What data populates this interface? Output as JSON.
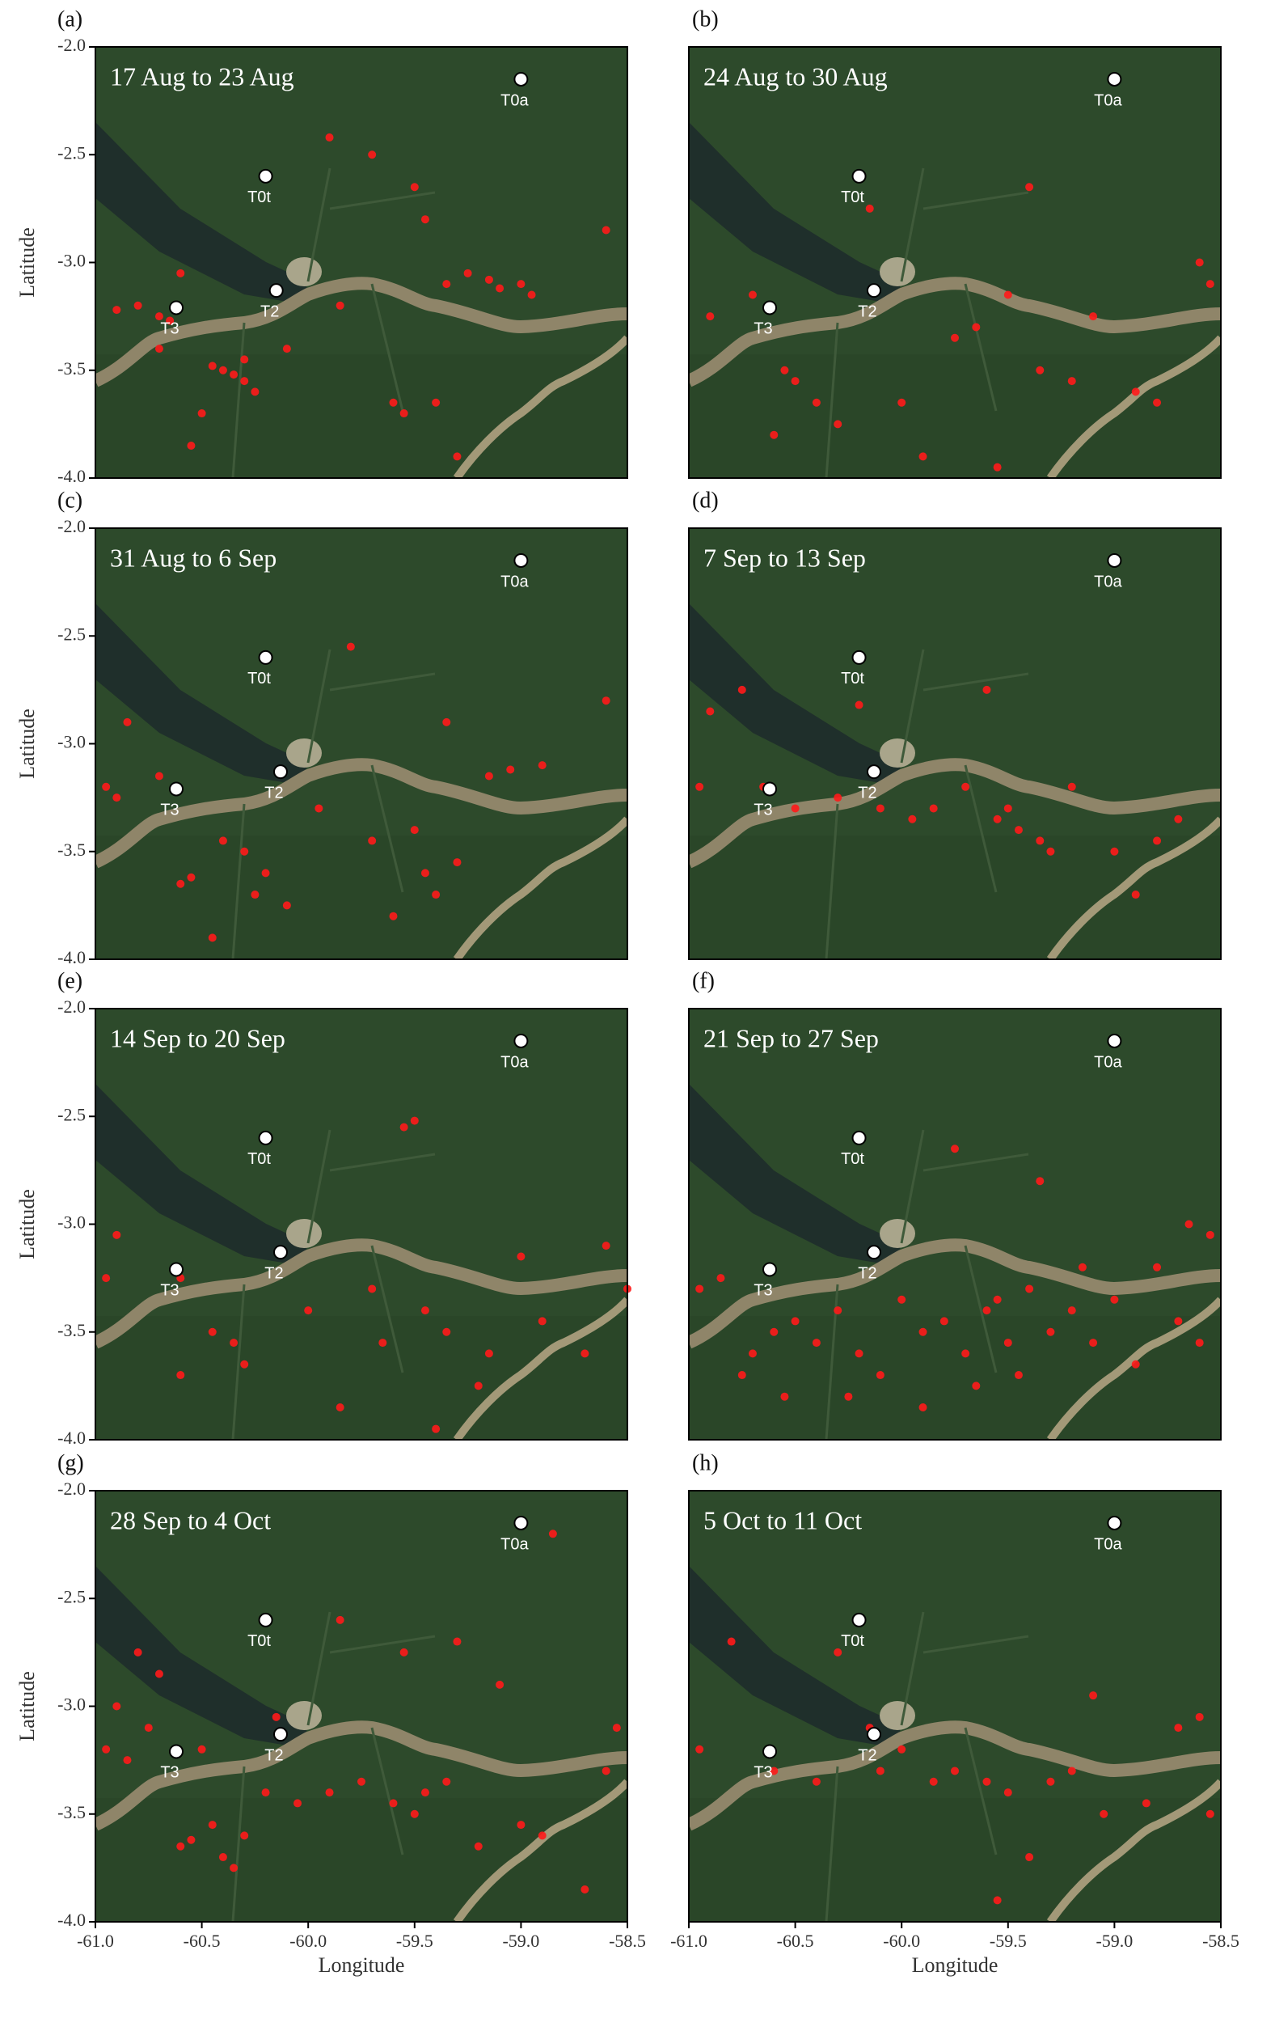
{
  "chart_data": [
    {
      "type": "scatter",
      "panel": "(a)",
      "title": "17 Aug to 23 Aug",
      "color": "#ff1a1a",
      "ylabel": "Latitude",
      "xlim": [
        -61,
        -58.5
      ],
      "ylim": [
        -4,
        -2
      ],
      "yticks": [
        {
          "value": -2,
          "label": "-2.0"
        },
        -2.5,
        {
          "value": -3,
          "label": "-3.0"
        },
        -3.5,
        {
          "value": -4,
          "label": "-4.0"
        }
      ],
      "sites": [
        {
          "name": "T0a",
          "lon": -59.0,
          "lat": -2.15
        },
        {
          "name": "T0t",
          "lon": -60.2,
          "lat": -2.6
        },
        {
          "name": "T2",
          "lon": -60.15,
          "lat": -3.13
        },
        {
          "name": "T3",
          "lon": -60.62,
          "lat": -3.21
        }
      ],
      "x": [
        -60.9,
        -60.8,
        -60.7,
        -60.65,
        -60.4,
        -60.35,
        -60.3,
        -60.45,
        -60.3,
        -60.25,
        -60.5,
        -60.55,
        -60.1,
        -59.85,
        -59.6,
        -59.55,
        -59.4,
        -59.35,
        -59.25,
        -59.15,
        -59.1,
        -59.0,
        -58.95,
        -59.5,
        -59.45,
        -59.7,
        -60.6,
        -60.7,
        -59.9,
        -59.3,
        -58.6
      ],
      "y": [
        -3.22,
        -3.2,
        -3.25,
        -3.27,
        -3.5,
        -3.52,
        -3.55,
        -3.48,
        -3.45,
        -3.6,
        -3.7,
        -3.85,
        -3.4,
        -3.2,
        -3.65,
        -3.7,
        -3.65,
        -3.1,
        -3.05,
        -3.08,
        -3.12,
        -3.1,
        -3.15,
        -2.65,
        -2.8,
        -2.5,
        -3.05,
        -3.4,
        -2.42,
        -3.9,
        -2.85
      ]
    },
    {
      "type": "scatter",
      "panel": "(b)",
      "title": "24 Aug to 30 Aug",
      "color": "#ff1a1a",
      "xlim": [
        -61,
        -58.5
      ],
      "ylim": [
        -4,
        -2
      ],
      "sites": [
        {
          "name": "T0a",
          "lon": -59.0,
          "lat": -2.15
        },
        {
          "name": "T0t",
          "lon": -60.2,
          "lat": -2.6
        },
        {
          "name": "T2",
          "lon": -60.13,
          "lat": -3.13
        },
        {
          "name": "T3",
          "lon": -60.62,
          "lat": -3.21
        }
      ],
      "x": [
        -60.9,
        -60.7,
        -60.55,
        -60.5,
        -60.4,
        -60.3,
        -60.0,
        -59.75,
        -59.65,
        -59.5,
        -59.35,
        -59.2,
        -59.1,
        -58.9,
        -58.8,
        -58.6,
        -58.55,
        -59.4,
        -60.15,
        -59.9,
        -60.6,
        -59.55
      ],
      "y": [
        -3.25,
        -3.15,
        -3.5,
        -3.55,
        -3.65,
        -3.75,
        -3.65,
        -3.35,
        -3.3,
        -3.15,
        -3.5,
        -3.55,
        -3.25,
        -3.6,
        -3.65,
        -3.0,
        -3.1,
        -2.65,
        -2.75,
        -3.9,
        -3.8,
        -3.95
      ]
    },
    {
      "type": "scatter",
      "panel": "(c)",
      "title": "31 Aug to 6 Sep",
      "color": "#ff1a1a",
      "ylabel": "Latitude",
      "xlim": [
        -61,
        -58.5
      ],
      "ylim": [
        -4,
        -2
      ],
      "yticks": [
        {
          "value": -2,
          "label": "-2.0"
        },
        -2.5,
        {
          "value": -3,
          "label": "-3.0"
        },
        -3.5,
        {
          "value": -4,
          "label": "-4.0"
        }
      ],
      "sites": [
        {
          "name": "T0a",
          "lon": -59.0,
          "lat": -2.15
        },
        {
          "name": "T0t",
          "lon": -60.2,
          "lat": -2.6
        },
        {
          "name": "T2",
          "lon": -60.13,
          "lat": -3.13
        },
        {
          "name": "T3",
          "lon": -60.62,
          "lat": -3.21
        }
      ],
      "x": [
        -60.95,
        -60.9,
        -60.85,
        -60.6,
        -60.55,
        -60.4,
        -60.3,
        -60.2,
        -60.1,
        -59.95,
        -59.7,
        -59.5,
        -59.45,
        -59.4,
        -59.3,
        -59.15,
        -59.05,
        -58.9,
        -60.45,
        -60.25,
        -59.6,
        -59.35,
        -58.6,
        -60.7,
        -59.8
      ],
      "y": [
        -3.2,
        -3.25,
        -2.9,
        -3.65,
        -3.62,
        -3.45,
        -3.5,
        -3.6,
        -3.75,
        -3.3,
        -3.45,
        -3.4,
        -3.6,
        -3.7,
        -3.55,
        -3.15,
        -3.12,
        -3.1,
        -3.9,
        -3.7,
        -3.8,
        -2.9,
        -2.8,
        -3.15,
        -2.55
      ]
    },
    {
      "type": "scatter",
      "panel": "(d)",
      "title": "7 Sep to 13 Sep",
      "color": "#ff1a1a",
      "xlim": [
        -61,
        -58.5
      ],
      "ylim": [
        -4,
        -2
      ],
      "sites": [
        {
          "name": "T0a",
          "lon": -59.0,
          "lat": -2.15
        },
        {
          "name": "T0t",
          "lon": -60.2,
          "lat": -2.6
        },
        {
          "name": "T2",
          "lon": -60.13,
          "lat": -3.13
        },
        {
          "name": "T3",
          "lon": -60.62,
          "lat": -3.21
        }
      ],
      "x": [
        -60.95,
        -60.9,
        -60.75,
        -60.5,
        -60.3,
        -60.1,
        -59.95,
        -59.85,
        -59.7,
        -59.55,
        -59.5,
        -59.45,
        -59.35,
        -59.2,
        -59.0,
        -58.8,
        -58.7,
        -60.2,
        -59.6,
        -59.3,
        -58.9,
        -60.65
      ],
      "y": [
        -3.2,
        -2.85,
        -2.75,
        -3.3,
        -3.25,
        -3.3,
        -3.35,
        -3.3,
        -3.2,
        -3.35,
        -3.3,
        -3.4,
        -3.45,
        -3.2,
        -3.5,
        -3.45,
        -3.35,
        -2.82,
        -2.75,
        -3.5,
        -3.7,
        -3.2
      ]
    },
    {
      "type": "scatter",
      "panel": "(e)",
      "title": "14 Sep to 20 Sep",
      "color": "#ff1a1a",
      "ylabel": "Latitude",
      "xlim": [
        -61,
        -58.5
      ],
      "ylim": [
        -4,
        -2
      ],
      "yticks": [
        {
          "value": -2,
          "label": "-2.0"
        },
        -2.5,
        {
          "value": -3,
          "label": "-3.0"
        },
        -3.5,
        {
          "value": -4,
          "label": "-4.0"
        }
      ],
      "sites": [
        {
          "name": "T0a",
          "lon": -59.0,
          "lat": -2.15
        },
        {
          "name": "T0t",
          "lon": -60.2,
          "lat": -2.6
        },
        {
          "name": "T2",
          "lon": -60.13,
          "lat": -3.13
        },
        {
          "name": "T3",
          "lon": -60.62,
          "lat": -3.21
        }
      ],
      "x": [
        -60.95,
        -60.9,
        -60.6,
        -60.45,
        -60.35,
        -60.3,
        -60.0,
        -59.85,
        -59.7,
        -59.65,
        -59.55,
        -59.5,
        -59.45,
        -59.35,
        -59.2,
        -59.15,
        -59.0,
        -58.9,
        -58.7,
        -58.6,
        -60.6,
        -59.4,
        -58.5
      ],
      "y": [
        -3.25,
        -3.05,
        -3.25,
        -3.5,
        -3.55,
        -3.65,
        -3.4,
        -3.85,
        -3.3,
        -3.55,
        -2.55,
        -2.52,
        -3.4,
        -3.5,
        -3.75,
        -3.6,
        -3.15,
        -3.45,
        -3.6,
        -3.1,
        -3.7,
        -3.95,
        -3.3
      ]
    },
    {
      "type": "scatter",
      "panel": "(f)",
      "title": "21 Sep to 27 Sep",
      "color": "#ff1a1a",
      "xlim": [
        -61,
        -58.5
      ],
      "ylim": [
        -4,
        -2
      ],
      "sites": [
        {
          "name": "T0a",
          "lon": -59.0,
          "lat": -2.15
        },
        {
          "name": "T0t",
          "lon": -60.2,
          "lat": -2.6
        },
        {
          "name": "T2",
          "lon": -60.13,
          "lat": -3.13
        },
        {
          "name": "T3",
          "lon": -60.62,
          "lat": -3.21
        }
      ],
      "x": [
        -60.95,
        -60.85,
        -60.75,
        -60.7,
        -60.6,
        -60.55,
        -60.5,
        -60.4,
        -60.3,
        -60.2,
        -60.1,
        -60.0,
        -59.9,
        -59.8,
        -59.7,
        -59.6,
        -59.55,
        -59.5,
        -59.45,
        -59.4,
        -59.3,
        -59.2,
        -59.1,
        -59.0,
        -58.9,
        -58.8,
        -58.7,
        -58.6,
        -58.55,
        -59.65,
        -59.9,
        -60.25,
        -59.35,
        -59.75,
        -58.65,
        -59.15
      ],
      "y": [
        -3.3,
        -3.25,
        -3.7,
        -3.6,
        -3.5,
        -3.8,
        -3.45,
        -3.55,
        -3.4,
        -3.6,
        -3.7,
        -3.35,
        -3.5,
        -3.45,
        -3.6,
        -3.4,
        -3.35,
        -3.55,
        -3.7,
        -3.3,
        -3.5,
        -3.4,
        -3.55,
        -3.35,
        -3.65,
        -3.2,
        -3.45,
        -3.55,
        -3.05,
        -3.75,
        -3.85,
        -3.8,
        -2.8,
        -2.65,
        -3.0,
        -3.2
      ]
    },
    {
      "type": "scatter",
      "panel": "(g)",
      "title": "28 Sep to 4 Oct",
      "color": "#ff1a1a",
      "ylabel": "Latitude",
      "xlabel": "Longitude",
      "xlim": [
        -61,
        -58.5
      ],
      "ylim": [
        -4,
        -2
      ],
      "xticks": [
        {
          "value": -61,
          "label": "-61.0"
        },
        -60.5,
        {
          "value": -60,
          "label": "-60.0"
        },
        -59.5,
        {
          "value": -59,
          "label": "-59.0"
        },
        -58.5
      ],
      "yticks": [
        {
          "value": -2,
          "label": "-2.0"
        },
        -2.5,
        {
          "value": -3,
          "label": "-3.0"
        },
        -3.5,
        {
          "value": -4,
          "label": "-4.0"
        }
      ],
      "sites": [
        {
          "name": "T0a",
          "lon": -59.0,
          "lat": -2.15
        },
        {
          "name": "T0t",
          "lon": -60.2,
          "lat": -2.6
        },
        {
          "name": "T2",
          "lon": -60.13,
          "lat": -3.13
        },
        {
          "name": "T3",
          "lon": -60.62,
          "lat": -3.21
        }
      ],
      "x": [
        -60.95,
        -60.9,
        -60.85,
        -60.8,
        -60.7,
        -60.6,
        -60.55,
        -60.45,
        -60.4,
        -60.3,
        -60.2,
        -60.05,
        -59.9,
        -59.75,
        -59.6,
        -59.5,
        -59.45,
        -59.35,
        -59.2,
        -59.0,
        -58.9,
        -58.7,
        -58.6,
        -60.75,
        -60.5,
        -60.35,
        -59.85,
        -59.55,
        -59.3,
        -59.1,
        -58.55,
        -58.85,
        -60.15
      ],
      "y": [
        -3.2,
        -3.0,
        -3.25,
        -2.75,
        -2.85,
        -3.65,
        -3.62,
        -3.55,
        -3.7,
        -3.6,
        -3.4,
        -3.45,
        -3.4,
        -3.35,
        -3.45,
        -3.5,
        -3.4,
        -3.35,
        -3.65,
        -3.55,
        -3.6,
        -3.85,
        -3.3,
        -3.1,
        -3.2,
        -3.75,
        -2.6,
        -2.75,
        -2.7,
        -2.9,
        -3.1,
        -2.2,
        -3.05
      ]
    },
    {
      "type": "scatter",
      "panel": "(h)",
      "title": "5 Oct to 11 Oct",
      "color": "#ff1a1a",
      "xlabel": "Longitude",
      "xlim": [
        -61,
        -58.5
      ],
      "ylim": [
        -4,
        -2
      ],
      "xticks": [
        {
          "value": -61,
          "label": "-61.0"
        },
        -60.5,
        {
          "value": -60,
          "label": "-60.0"
        },
        -59.5,
        {
          "value": -59,
          "label": "-59.0"
        },
        -58.5
      ],
      "sites": [
        {
          "name": "T0a",
          "lon": -59.0,
          "lat": -2.15
        },
        {
          "name": "T0t",
          "lon": -60.2,
          "lat": -2.6
        },
        {
          "name": "T2",
          "lon": -60.13,
          "lat": -3.13
        },
        {
          "name": "T3",
          "lon": -60.62,
          "lat": -3.21
        }
      ],
      "x": [
        -60.95,
        -60.6,
        -60.4,
        -60.3,
        -60.15,
        -60.1,
        -59.85,
        -59.75,
        -59.6,
        -59.5,
        -59.3,
        -59.2,
        -59.05,
        -58.85,
        -58.7,
        -58.6,
        -58.55,
        -59.4,
        -59.55,
        -59.1,
        -60.0,
        -60.8
      ],
      "y": [
        -3.2,
        -3.3,
        -3.35,
        -2.75,
        -3.1,
        -3.3,
        -3.35,
        -3.3,
        -3.35,
        -3.4,
        -3.35,
        -3.3,
        -3.5,
        -3.45,
        -3.1,
        -3.05,
        -3.5,
        -3.7,
        -3.9,
        -2.95,
        -3.2,
        -2.7
      ]
    }
  ]
}
